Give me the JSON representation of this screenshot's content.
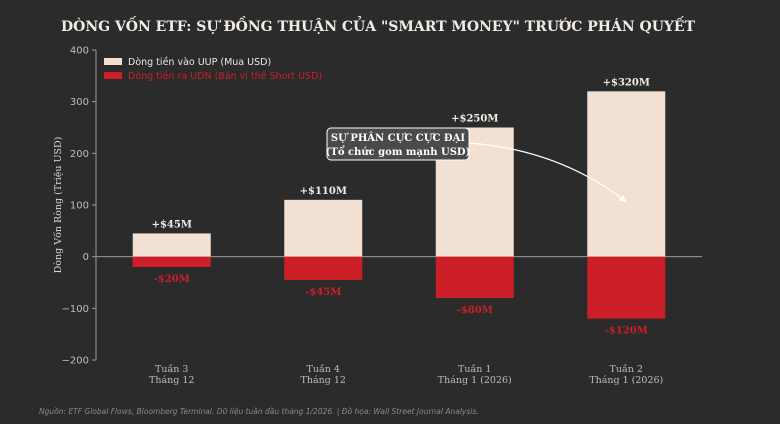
{
  "chart_data": {
    "type": "bar",
    "title": "DÒNG VỐN ETF: SỰ ĐỒNG THUẬN CỦA \"SMART MONEY\" TRƯỚC PHÁN QUYẾT",
    "ylabel": "Dòng Vốn Ròng (Triệu USD)",
    "ylim": [
      -200,
      400
    ],
    "yticks": [
      -200,
      -100,
      0,
      100,
      200,
      300,
      400
    ],
    "categories": [
      [
        "Tuần 3",
        "Tháng 12"
      ],
      [
        "Tuần 4",
        "Tháng 12"
      ],
      [
        "Tuần 1",
        "Tháng 1 (2026)"
      ],
      [
        "Tuần 2",
        "Tháng 1 (2026)"
      ]
    ],
    "series": [
      {
        "name": "Dòng tiền vào UUP (Mua USD)",
        "color": "#f2e0d2",
        "values": [
          45,
          110,
          250,
          320
        ],
        "labels": [
          "+$45M",
          "+$110M",
          "+$250M",
          "+$320M"
        ]
      },
      {
        "name": "Dòng tiền ra UDN (Bán vị thế Short USD)",
        "color": "#cc1f27",
        "values": [
          -20,
          -45,
          -80,
          -120
        ],
        "labels": [
          "-$20M",
          "-$45M",
          "-$80M",
          "-$120M"
        ]
      }
    ],
    "legend_position": "top-left",
    "annotation": {
      "lines": [
        "SỰ PHÂN CỰC CỰC ĐẠI",
        "(Tổ chức gom mạnh USD)"
      ],
      "points_to_category": 3,
      "points_to_value": 100
    },
    "source": "Nguồn: ETF Global Flows, Bloomberg Terminal. Dữ liệu tuần đầu tháng 1/2026. | Đồ họa: Wall Street Journal Analysis."
  }
}
